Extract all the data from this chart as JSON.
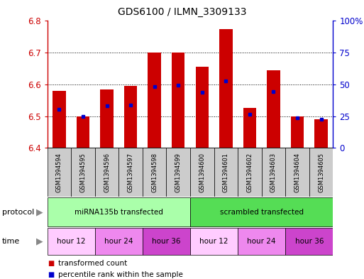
{
  "title": "GDS6100 / ILMN_3309133",
  "samples": [
    "GSM1394594",
    "GSM1394595",
    "GSM1394596",
    "GSM1394597",
    "GSM1394598",
    "GSM1394599",
    "GSM1394600",
    "GSM1394601",
    "GSM1394602",
    "GSM1394603",
    "GSM1394604",
    "GSM1394605"
  ],
  "bar_tops": [
    6.58,
    6.5,
    6.585,
    6.595,
    6.7,
    6.7,
    6.655,
    6.775,
    6.525,
    6.645,
    6.5,
    6.49
  ],
  "bar_base": 6.4,
  "percentile_values": [
    6.522,
    6.499,
    6.532,
    6.535,
    6.592,
    6.597,
    6.575,
    6.612,
    6.505,
    6.577,
    6.495,
    6.491
  ],
  "ylim": [
    6.4,
    6.8
  ],
  "yticks": [
    6.4,
    6.5,
    6.6,
    6.7,
    6.8
  ],
  "right_yticks": [
    0,
    25,
    50,
    75,
    100
  ],
  "bar_color": "#cc0000",
  "percentile_color": "#0000cc",
  "protocol_groups": [
    {
      "label": "miRNA135b transfected",
      "start": 0,
      "end": 5,
      "color": "#aaffaa"
    },
    {
      "label": "scrambled transfected",
      "start": 6,
      "end": 11,
      "color": "#55dd55"
    }
  ],
  "time_groups": [
    {
      "label": "hour 12",
      "start": 0,
      "end": 1,
      "color": "#ffccff"
    },
    {
      "label": "hour 24",
      "start": 2,
      "end": 3,
      "color": "#ee88ee"
    },
    {
      "label": "hour 36",
      "start": 4,
      "end": 5,
      "color": "#cc44cc"
    },
    {
      "label": "hour 12",
      "start": 6,
      "end": 7,
      "color": "#ffccff"
    },
    {
      "label": "hour 24",
      "start": 8,
      "end": 9,
      "color": "#ee88ee"
    },
    {
      "label": "hour 36",
      "start": 10,
      "end": 11,
      "color": "#cc44cc"
    }
  ],
  "legend_items": [
    {
      "label": "transformed count",
      "color": "#cc0000"
    },
    {
      "label": "percentile rank within the sample",
      "color": "#0000cc"
    }
  ],
  "background_color": "#ffffff",
  "sample_box_color": "#cccccc"
}
